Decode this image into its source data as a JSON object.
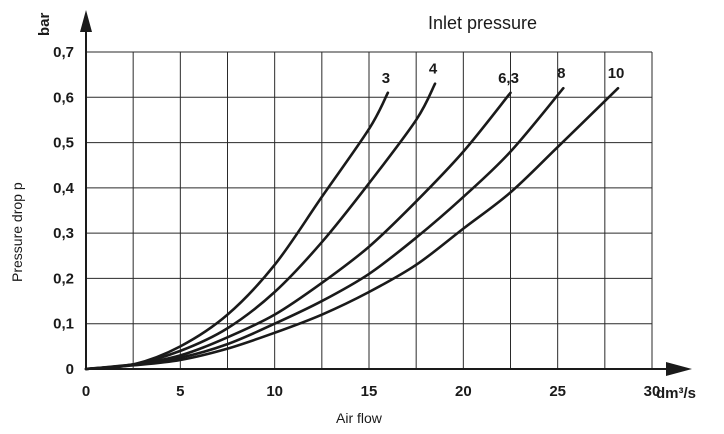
{
  "chart_data": {
    "type": "line",
    "legend_title": "Inlet pressure",
    "xlabel": "Air flow",
    "ylabel": "Pressure drop  p",
    "x_unit": "dm³/s",
    "y_unit": "bar",
    "xlim": [
      0,
      30
    ],
    "ylim": [
      0,
      0.7
    ],
    "x_ticks": [
      "0",
      "5",
      "10",
      "15",
      "20",
      "25",
      "30"
    ],
    "y_ticks": [
      "0",
      "0,1",
      "0,2",
      "0,3",
      "0,4",
      "0,5",
      "0,6",
      "0,7"
    ],
    "grid": true,
    "series": [
      {
        "name": "3",
        "x": [
          0,
          2.5,
          5,
          7.5,
          10,
          12.5,
          15,
          16
        ],
        "y": [
          0,
          0.01,
          0.05,
          0.12,
          0.23,
          0.38,
          0.53,
          0.61
        ]
      },
      {
        "name": "4",
        "x": [
          0,
          2.5,
          5,
          7.5,
          10,
          12.5,
          15,
          17.5,
          18.5
        ],
        "y": [
          0,
          0.01,
          0.04,
          0.09,
          0.17,
          0.28,
          0.41,
          0.55,
          0.63
        ]
      },
      {
        "name": "6,3",
        "x": [
          0,
          2.5,
          5,
          7.5,
          10,
          12.5,
          15,
          17.5,
          20,
          22.5
        ],
        "y": [
          0,
          0.01,
          0.03,
          0.07,
          0.12,
          0.19,
          0.27,
          0.37,
          0.48,
          0.61
        ]
      },
      {
        "name": "8",
        "x": [
          0,
          2.5,
          5,
          7.5,
          10,
          12.5,
          15,
          17.5,
          20,
          22.5,
          25.3
        ],
        "y": [
          0,
          0.01,
          0.025,
          0.055,
          0.1,
          0.15,
          0.21,
          0.29,
          0.38,
          0.48,
          0.62
        ]
      },
      {
        "name": "10",
        "x": [
          0,
          2.5,
          5,
          7.5,
          10,
          12.5,
          15,
          17.5,
          20,
          22.5,
          25,
          28.2
        ],
        "y": [
          0,
          0.008,
          0.02,
          0.045,
          0.08,
          0.12,
          0.17,
          0.23,
          0.31,
          0.39,
          0.49,
          0.62
        ]
      }
    ]
  }
}
